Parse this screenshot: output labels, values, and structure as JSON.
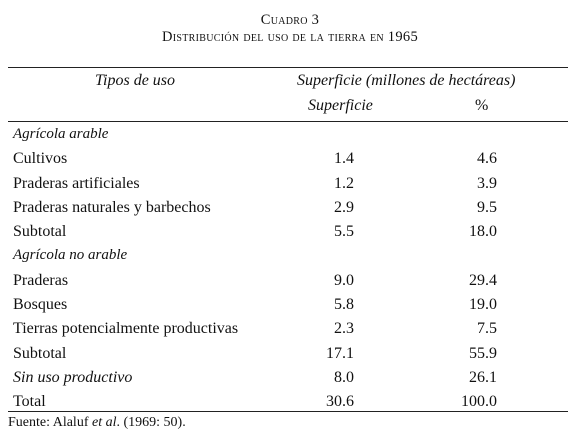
{
  "caption": {
    "label": "Cuadro 3",
    "title": "Distribución del uso de la tierra en 1965"
  },
  "header": {
    "col_tipos": "Tipos de uso",
    "col_group": "Superficie (millones de hectáreas)",
    "col_superficie": "Superficie",
    "col_pct": "%"
  },
  "rows": [
    {
      "label": "Agrícola arable",
      "superficie": "",
      "pct": "",
      "kind": "section"
    },
    {
      "label": "Cultivos",
      "superficie": "1.4",
      "pct": "4.6",
      "kind": "item"
    },
    {
      "label": "Praderas artificiales",
      "superficie": "1.2",
      "pct": "3.9",
      "kind": "item"
    },
    {
      "label": "Praderas naturales y barbechos",
      "superficie": "2.9",
      "pct": "9.5",
      "kind": "item"
    },
    {
      "label": "Subtotal",
      "superficie": "5.5",
      "pct": "18.0",
      "kind": "item"
    },
    {
      "label": "Agrícola no arable",
      "superficie": "",
      "pct": "",
      "kind": "section"
    },
    {
      "label": "Praderas",
      "superficie": "9.0",
      "pct": "29.4",
      "kind": "item"
    },
    {
      "label": "Bosques",
      "superficie": "5.8",
      "pct": "19.0",
      "kind": "item"
    },
    {
      "label": "Tierras potencialmente productivas",
      "superficie": "2.3",
      "pct": "7.5",
      "kind": "item"
    },
    {
      "label": "Subtotal",
      "superficie": "17.1",
      "pct": "55.9",
      "kind": "item"
    },
    {
      "label": "Sin uso productivo",
      "superficie": "8.0",
      "pct": "26.1",
      "kind": "italic"
    },
    {
      "label": "Total",
      "superficie": "30.6",
      "pct": "100.0",
      "kind": "item"
    }
  ],
  "source": {
    "prefix": "Fuente: Alaluf ",
    "etal": "et al",
    "suffix": ". (1969: 50)."
  }
}
